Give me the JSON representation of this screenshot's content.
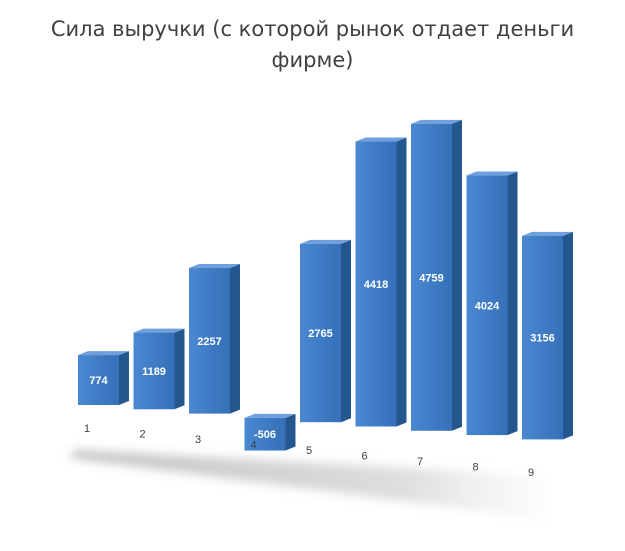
{
  "chart_data": {
    "type": "bar",
    "title": "Сила выручки (с которой рынок отдает деньги фирме)",
    "categories": [
      "1",
      "2",
      "3",
      "4",
      "5",
      "6",
      "7",
      "8",
      "9"
    ],
    "values": [
      774,
      1189,
      2257,
      -506,
      2765,
      4418,
      4759,
      4024,
      3156
    ],
    "data_labels": [
      "774",
      "1189",
      "2257",
      "-506",
      "2765",
      "4418",
      "4759",
      "4024",
      "3156"
    ],
    "xlabel": "",
    "ylabel": "",
    "grid": false,
    "legend": "none",
    "style": "3d-column",
    "colors": {
      "bar_front": "#3b78c4",
      "bar_side": "#25578f",
      "bar_top": "#6f9fdc",
      "floor": "#c9c9c9",
      "label_text": "#ffffff",
      "tick_text": "#404040"
    }
  }
}
